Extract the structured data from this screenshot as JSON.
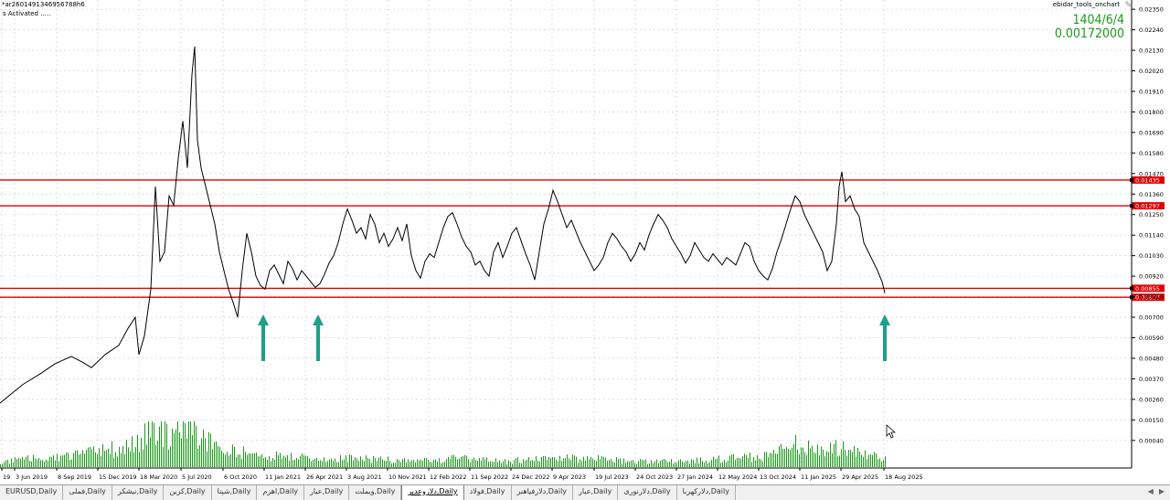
{
  "top_left": {
    "line1": "*ar2601491346956788h6",
    "line2": "s Activated ....."
  },
  "indicator_name": "ebidar_tools_onchart",
  "info": {
    "date": "1404/6/4",
    "value": "0.00172000"
  },
  "colors": {
    "price_line": "#000000",
    "level_line": "#e00000",
    "volume": "#1a9a1a",
    "arrow": "#1e9f8a",
    "grid": "#c8c8c8"
  },
  "price_axis": {
    "ticks": [
      "0.02350",
      "0.02240",
      "0.02130",
      "0.02020",
      "0.01910",
      "0.01800",
      "0.01690",
      "0.01580",
      "0.01470",
      "0.01360",
      "0.01250",
      "0.01140",
      "0.01030",
      "0.00920",
      "0.00810",
      "0.00700",
      "0.00590",
      "0.00480",
      "0.00370",
      "0.00260",
      "0.00150",
      "0.00040"
    ],
    "level_labels": [
      "0.01435",
      "0.01297",
      "0.00855",
      "0.00807"
    ]
  },
  "time_axis": [
    "19",
    "3 Jun 2019",
    "8 Sep 2019",
    "15 Dec 2019",
    "18 Mar 2020",
    "5 Jul 2020",
    "6 Oct 2020",
    "11 Jan 2021",
    "26 Apr 2021",
    "3 Aug 2021",
    "10 Nov 2021",
    "12 Feb 2022",
    "11 Sep 2022",
    "24 Dec 2022",
    "9 Apr 2023",
    "19 Jul 2023",
    "24 Oct 2023",
    "27 Jan 2024",
    "12 May 2024",
    "13 Oct 2024",
    "11 Jan 2025",
    "29 Apr 2025",
    "18 Aug 2025"
  ],
  "tabs": [
    "EURUSD,Daily",
    "فملی,Daily",
    "نیشکر,Daily",
    "کرین,Daily",
    "شپنا,Daily",
    "اهرم,Daily",
    "عیار,Daily",
    "ویملت,Daily",
    "دلاروعدیر,Daily",
    "فولاد,Daily",
    "دلارفیاهنر,Daily",
    "عیار,Daily",
    "دلارنوری,Daily",
    "دلارکهربا,Daily"
  ],
  "active_tab_index": 8,
  "chart_data": {
    "type": "line",
    "title": "",
    "y_range": [
      0.0,
      0.0238
    ],
    "horizontal_levels": [
      0.01435,
      0.01297,
      0.00855,
      0.00807
    ],
    "x_index_labels": [
      "3 Jun 2019",
      "18 Mar 2020",
      "5 Jul 2020",
      "6 Oct 2020",
      "11 Jan 2021",
      "26 Apr 2021",
      "3 Aug 2021",
      "10 Nov 2021",
      "12 Feb 2022",
      "11 Sep 2022",
      "24 Dec 2022",
      "9 Apr 2023",
      "19 Jul 2023",
      "24 Oct 2023",
      "27 Jan 2024",
      "12 May 2024",
      "13 Oct 2024",
      "11 Jan 2025",
      "29 Apr 2025",
      "18 Aug 2025"
    ],
    "price_series": [
      [
        0,
        0.0024
      ],
      [
        10,
        0.0028
      ],
      [
        25,
        0.0034
      ],
      [
        45,
        0.004
      ],
      [
        60,
        0.0045
      ],
      [
        78,
        0.0049
      ],
      [
        90,
        0.0046
      ],
      [
        100,
        0.0043
      ],
      [
        115,
        0.005
      ],
      [
        130,
        0.0055
      ],
      [
        140,
        0.0064
      ],
      [
        148,
        0.007
      ],
      [
        152,
        0.005
      ],
      [
        158,
        0.006
      ],
      [
        165,
        0.0085
      ],
      [
        170,
        0.014
      ],
      [
        175,
        0.01
      ],
      [
        180,
        0.0105
      ],
      [
        185,
        0.0135
      ],
      [
        190,
        0.013
      ],
      [
        195,
        0.0155
      ],
      [
        200,
        0.0175
      ],
      [
        205,
        0.015
      ],
      [
        210,
        0.02
      ],
      [
        213,
        0.0215
      ],
      [
        216,
        0.0165
      ],
      [
        220,
        0.015
      ],
      [
        225,
        0.014
      ],
      [
        230,
        0.013
      ],
      [
        235,
        0.012
      ],
      [
        240,
        0.0105
      ],
      [
        245,
        0.0095
      ],
      [
        250,
        0.0085
      ],
      [
        255,
        0.0078
      ],
      [
        260,
        0.007
      ],
      [
        265,
        0.0095
      ],
      [
        270,
        0.0115
      ],
      [
        275,
        0.0105
      ],
      [
        280,
        0.0092
      ],
      [
        285,
        0.0087
      ],
      [
        290,
        0.0085
      ],
      [
        295,
        0.0095
      ],
      [
        300,
        0.0098
      ],
      [
        305,
        0.0093
      ],
      [
        310,
        0.0088
      ],
      [
        315,
        0.01
      ],
      [
        320,
        0.0096
      ],
      [
        325,
        0.009
      ],
      [
        330,
        0.0095
      ],
      [
        335,
        0.0092
      ],
      [
        340,
        0.0089
      ],
      [
        345,
        0.0086
      ],
      [
        350,
        0.0088
      ],
      [
        355,
        0.0093
      ],
      [
        360,
        0.0099
      ],
      [
        365,
        0.0103
      ],
      [
        370,
        0.011
      ],
      [
        375,
        0.012
      ],
      [
        380,
        0.0128
      ],
      [
        385,
        0.0122
      ],
      [
        390,
        0.0115
      ],
      [
        395,
        0.0118
      ],
      [
        400,
        0.0112
      ],
      [
        405,
        0.0125
      ],
      [
        410,
        0.012
      ],
      [
        415,
        0.011
      ],
      [
        420,
        0.0115
      ],
      [
        425,
        0.0108
      ],
      [
        430,
        0.0112
      ],
      [
        435,
        0.0118
      ],
      [
        440,
        0.0111
      ],
      [
        445,
        0.012
      ],
      [
        450,
        0.0103
      ],
      [
        455,
        0.0095
      ],
      [
        460,
        0.0091
      ],
      [
        465,
        0.01
      ],
      [
        470,
        0.0104
      ],
      [
        475,
        0.0102
      ],
      [
        480,
        0.011
      ],
      [
        485,
        0.0118
      ],
      [
        490,
        0.0124
      ],
      [
        495,
        0.0126
      ],
      [
        500,
        0.012
      ],
      [
        505,
        0.0113
      ],
      [
        510,
        0.0108
      ],
      [
        515,
        0.0105
      ],
      [
        520,
        0.0098
      ],
      [
        525,
        0.01
      ],
      [
        530,
        0.0095
      ],
      [
        535,
        0.0092
      ],
      [
        540,
        0.0105
      ],
      [
        545,
        0.011
      ],
      [
        550,
        0.0102
      ],
      [
        555,
        0.0108
      ],
      [
        560,
        0.0115
      ],
      [
        565,
        0.0118
      ],
      [
        570,
        0.0111
      ],
      [
        575,
        0.0104
      ],
      [
        580,
        0.0098
      ],
      [
        585,
        0.009
      ],
      [
        590,
        0.0105
      ],
      [
        595,
        0.012
      ],
      [
        600,
        0.0128
      ],
      [
        605,
        0.0138
      ],
      [
        610,
        0.0132
      ],
      [
        615,
        0.0125
      ],
      [
        620,
        0.0118
      ],
      [
        625,
        0.0122
      ],
      [
        630,
        0.0116
      ],
      [
        635,
        0.011
      ],
      [
        640,
        0.0105
      ],
      [
        645,
        0.01
      ],
      [
        650,
        0.0095
      ],
      [
        655,
        0.0098
      ],
      [
        660,
        0.0102
      ],
      [
        665,
        0.011
      ],
      [
        670,
        0.0115
      ],
      [
        675,
        0.0112
      ],
      [
        680,
        0.0108
      ],
      [
        685,
        0.0105
      ],
      [
        690,
        0.01
      ],
      [
        695,
        0.0104
      ],
      [
        700,
        0.011
      ],
      [
        705,
        0.0106
      ],
      [
        710,
        0.0114
      ],
      [
        715,
        0.012
      ],
      [
        720,
        0.0125
      ],
      [
        725,
        0.0122
      ],
      [
        730,
        0.0118
      ],
      [
        735,
        0.0112
      ],
      [
        740,
        0.0108
      ],
      [
        745,
        0.0104
      ],
      [
        750,
        0.0099
      ],
      [
        755,
        0.0103
      ],
      [
        760,
        0.011
      ],
      [
        765,
        0.0106
      ],
      [
        770,
        0.0102
      ],
      [
        775,
        0.01
      ],
      [
        780,
        0.0104
      ],
      [
        785,
        0.0101
      ],
      [
        790,
        0.0098
      ],
      [
        795,
        0.0102
      ],
      [
        800,
        0.01
      ],
      [
        805,
        0.0098
      ],
      [
        810,
        0.0104
      ],
      [
        815,
        0.011
      ],
      [
        820,
        0.0108
      ],
      [
        825,
        0.01
      ],
      [
        830,
        0.0095
      ],
      [
        835,
        0.0092
      ],
      [
        840,
        0.009
      ],
      [
        845,
        0.0096
      ],
      [
        850,
        0.0105
      ],
      [
        855,
        0.0112
      ],
      [
        860,
        0.012
      ],
      [
        865,
        0.0128
      ],
      [
        870,
        0.0135
      ],
      [
        875,
        0.0132
      ],
      [
        880,
        0.0125
      ],
      [
        885,
        0.012
      ],
      [
        890,
        0.0115
      ],
      [
        895,
        0.011
      ],
      [
        900,
        0.0105
      ],
      [
        905,
        0.0095
      ],
      [
        910,
        0.01
      ],
      [
        915,
        0.012
      ],
      [
        918,
        0.014
      ],
      [
        921,
        0.0148
      ],
      [
        925,
        0.0132
      ],
      [
        930,
        0.0135
      ],
      [
        935,
        0.0128
      ],
      [
        940,
        0.0124
      ],
      [
        945,
        0.011
      ],
      [
        950,
        0.0105
      ],
      [
        955,
        0.01
      ],
      [
        960,
        0.0095
      ],
      [
        965,
        0.0089
      ],
      [
        968,
        0.0083
      ]
    ],
    "volume_series": [
      [
        0,
        0.0002
      ],
      [
        40,
        0.0003
      ],
      [
        80,
        0.0004
      ],
      [
        120,
        0.0006
      ],
      [
        150,
        0.0008
      ],
      [
        165,
        0.0016
      ],
      [
        175,
        0.0014
      ],
      [
        185,
        0.0012
      ],
      [
        195,
        0.0015
      ],
      [
        205,
        0.0016
      ],
      [
        215,
        0.0013
      ],
      [
        225,
        0.001
      ],
      [
        240,
        0.0006
      ],
      [
        260,
        0.0005
      ],
      [
        300,
        0.0004
      ],
      [
        350,
        0.0003
      ],
      [
        400,
        0.0003
      ],
      [
        450,
        0.0002
      ],
      [
        500,
        0.0003
      ],
      [
        550,
        0.0002
      ],
      [
        600,
        0.0003
      ],
      [
        650,
        0.0003
      ],
      [
        700,
        0.0002
      ],
      [
        750,
        0.0002
      ],
      [
        800,
        0.0003
      ],
      [
        840,
        0.0004
      ],
      [
        870,
        0.0008
      ],
      [
        900,
        0.0005
      ],
      [
        920,
        0.0007
      ],
      [
        950,
        0.0004
      ],
      [
        968,
        0.0003
      ]
    ]
  }
}
